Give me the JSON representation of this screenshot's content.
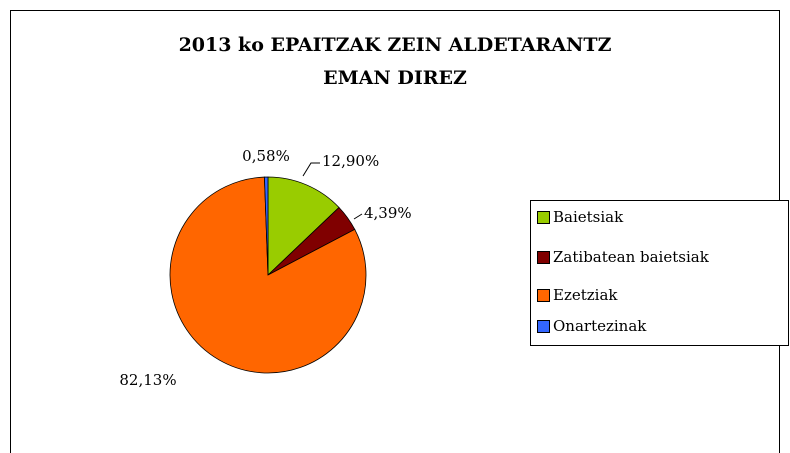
{
  "chart_data": {
    "type": "pie",
    "title": [
      "2013 ko EPAITZAK ZEIN ALDETARANTZ",
      "EMAN DIREZ"
    ],
    "categories": [
      "Baietsiak",
      "Zatibatean baietsiak",
      "Ezetziak",
      "Onartezinak"
    ],
    "values": [
      12.9,
      4.39,
      82.13,
      0.58
    ],
    "value_labels": [
      "12,90%",
      "4,39%",
      "82,13%",
      "0,58%"
    ],
    "colors": [
      "#99cc00",
      "#800000",
      "#ff6600",
      "#3366ff"
    ],
    "legend": "right"
  }
}
